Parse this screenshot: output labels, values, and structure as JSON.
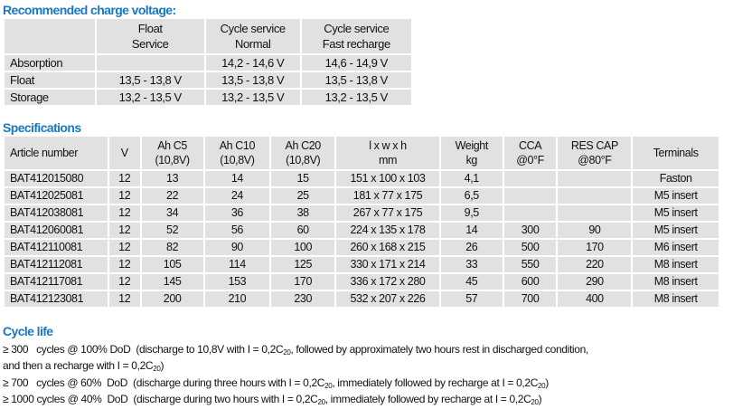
{
  "charge_voltage": {
    "title": "Recommended charge voltage:",
    "headers": [
      [
        "",
        ""
      ],
      [
        "Float",
        "Service"
      ],
      [
        "Cycle service",
        "Normal"
      ],
      [
        "Cycle service",
        "Fast recharge"
      ]
    ],
    "rows": [
      [
        "Absorption",
        "",
        "14,2 - 14,6 V",
        "14,6 - 14,9 V"
      ],
      [
        "Float",
        "13,5 - 13,8 V",
        "13,5 - 13,8 V",
        "13,5 - 13,8 V"
      ],
      [
        "Storage",
        "13,2 - 13,5 V",
        "13,2 - 13,5 V",
        "13,2 - 13,5 V"
      ]
    ]
  },
  "specifications": {
    "title": "Specifications",
    "headers": [
      [
        "Article number",
        ""
      ],
      [
        "V",
        ""
      ],
      [
        "Ah C5",
        "(10,8V)"
      ],
      [
        "Ah C10",
        "(10,8V)"
      ],
      [
        "Ah C20",
        "(10,8V)"
      ],
      [
        "l x w x h",
        "mm"
      ],
      [
        "Weight",
        "kg"
      ],
      [
        "CCA",
        "@0°F"
      ],
      [
        "RES CAP",
        "@80°F"
      ],
      [
        "Terminals",
        ""
      ]
    ],
    "rows": [
      [
        "BAT412015080",
        "12",
        "13",
        "14",
        "15",
        "151 x 100 x 103",
        "4,1",
        "",
        "",
        "Faston"
      ],
      [
        "BAT412025081",
        "12",
        "22",
        "24",
        "25",
        "181 x 77 x 175",
        "6,5",
        "",
        "",
        "M5 insert"
      ],
      [
        "BAT412038081",
        "12",
        "34",
        "36",
        "38",
        "267 x 77 x 175",
        "9,5",
        "",
        "",
        "M5 insert"
      ],
      [
        "BAT412060081",
        "12",
        "52",
        "56",
        "60",
        "224 x 135 x 178",
        "14",
        "300",
        "90",
        "M5 insert"
      ],
      [
        "BAT412110081",
        "12",
        "82",
        "90",
        "100",
        "260 x 168 x 215",
        "26",
        "500",
        "170",
        "M6 insert"
      ],
      [
        "BAT412112081",
        "12",
        "105",
        "114",
        "125",
        "330 x 171 x 214",
        "33",
        "550",
        "220",
        "M8 insert"
      ],
      [
        "BAT412117081",
        "12",
        "145",
        "153",
        "170",
        "336 x 172 x 280",
        "45",
        "600",
        "290",
        "M8 insert"
      ],
      [
        "BAT412123081",
        "12",
        "200",
        "210",
        "230",
        "532 x 207 x 226",
        "57",
        "700",
        "400",
        "M8 insert"
      ]
    ]
  },
  "cycle_life": {
    "title": "Cycle life",
    "lines": [
      {
        "a": "≥ 300   cycles @ 100% DoD  (discharge to 10,8V with I = 0,2C",
        "s1": "20",
        "b": ", followed by approximately two hours rest in discharged condition,",
        "s2": "",
        "c": ""
      },
      {
        "a": "and then a recharge with I = 0,2C",
        "s1": "20",
        "b": ")",
        "s2": "",
        "c": ""
      },
      {
        "a": "≥ 700   cycles @ 60%  DoD  (discharge during three hours with I = 0,2C",
        "s1": "20",
        "b": ", immediately followed by recharge at I = 0,2C",
        "s2": "20",
        "c": ")"
      },
      {
        "a": "≥ 1000 cycles @ 40%  DoD  (discharge during two hours with I = 0,2C",
        "s1": "20",
        "b": ", immediately followed by recharge at I = 0,2C",
        "s2": "20",
        "c": ")"
      }
    ]
  }
}
